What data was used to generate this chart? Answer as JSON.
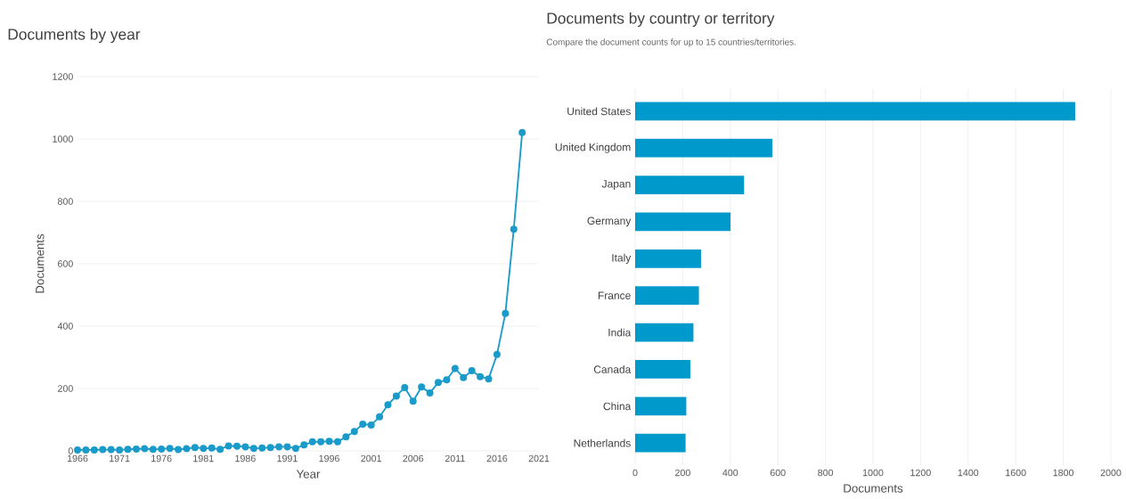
{
  "chart_data": [
    {
      "type": "line",
      "title": "Documents by year",
      "xlabel": "Year",
      "ylabel": "Documents",
      "color": "#1a9bc9",
      "marker": "circle",
      "grid": "y",
      "x": [
        1966,
        1967,
        1968,
        1969,
        1970,
        1971,
        1972,
        1973,
        1974,
        1975,
        1976,
        1977,
        1978,
        1979,
        1980,
        1981,
        1982,
        1983,
        1984,
        1985,
        1986,
        1987,
        1988,
        1989,
        1990,
        1991,
        1992,
        1993,
        1994,
        1995,
        1996,
        1997,
        1998,
        1999,
        2000,
        2001,
        2002,
        2003,
        2004,
        2005,
        2006,
        2007,
        2008,
        2009,
        2010,
        2011,
        2012,
        2013,
        2014,
        2015,
        2016,
        2017,
        2018,
        2019
      ],
      "values": [
        3,
        3,
        3,
        4,
        4,
        3,
        5,
        6,
        7,
        5,
        6,
        8,
        4,
        7,
        11,
        8,
        9,
        5,
        16,
        15,
        13,
        8,
        9,
        11,
        13,
        13,
        8,
        19,
        29,
        29,
        31,
        29,
        45,
        62,
        86,
        83,
        109,
        148,
        176,
        203,
        159,
        205,
        186,
        219,
        228,
        264,
        235,
        257,
        238,
        231,
        309,
        441,
        711,
        1021
      ],
      "xlim": [
        1966,
        2021
      ],
      "xticks": [
        1966,
        1971,
        1976,
        1981,
        1986,
        1991,
        1996,
        2001,
        2006,
        2011,
        2016,
        2021
      ],
      "ylim": [
        0,
        1200
      ],
      "yticks": [
        0,
        200,
        400,
        600,
        800,
        1000,
        1200
      ]
    },
    {
      "type": "bar",
      "orientation": "horizontal",
      "title": "Documents by country or territory",
      "subtitle": "Compare the document counts for up to 15 countries/territories.",
      "xlabel": "Documents",
      "color": "#0099cc",
      "grid": "x",
      "categories": [
        "United States",
        "United Kingdom",
        "Japan",
        "Germany",
        "Italy",
        "France",
        "India",
        "Canada",
        "China",
        "Netherlands"
      ],
      "values": [
        1850,
        577,
        458,
        401,
        277,
        268,
        245,
        232,
        215,
        212
      ],
      "xlim": [
        0,
        2000
      ],
      "xticks": [
        0,
        200,
        400,
        600,
        800,
        1000,
        1200,
        1400,
        1600,
        1800,
        2000
      ]
    }
  ]
}
